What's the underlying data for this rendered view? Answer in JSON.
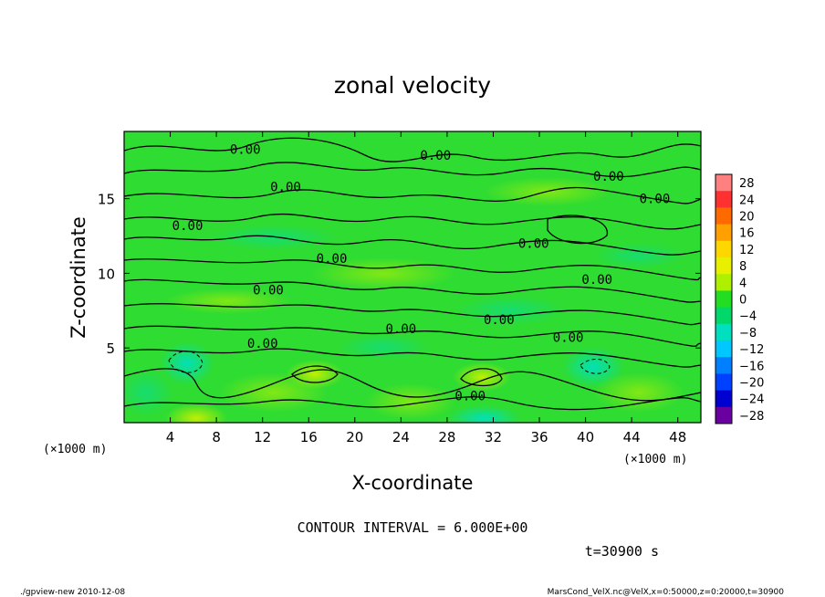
{
  "chart_data": {
    "type": "heatmap",
    "title": "zonal velocity",
    "xlabel": "X-coordinate",
    "ylabel": "Z-coordinate",
    "x_unit": "(×1000 m)",
    "y_unit": "(×1000 m)",
    "xlim": [
      0,
      50
    ],
    "ylim": [
      0,
      19.5
    ],
    "x_ticks": [
      4,
      8,
      12,
      16,
      20,
      24,
      28,
      32,
      36,
      40,
      44,
      48
    ],
    "y_ticks": [
      5,
      10,
      15
    ],
    "colorbar": {
      "levels": [
        28,
        24,
        20,
        16,
        12,
        8,
        4,
        0,
        -4,
        -8,
        -12,
        -16,
        -20,
        -24,
        -28
      ],
      "colors": [
        "#ff8080",
        "#ff3030",
        "#ff6a00",
        "#ffa000",
        "#ffd700",
        "#e8f000",
        "#aef000",
        "#22dd22",
        "#00d86a",
        "#00e0c0",
        "#00c8ff",
        "#0080ff",
        "#0040ff",
        "#0000d0",
        "#6a00a0"
      ]
    },
    "contour_label": "0.00",
    "contour_label_positions": [
      {
        "x": 10.5,
        "z": 18.0
      },
      {
        "x": 27.0,
        "z": 17.6
      },
      {
        "x": 42.0,
        "z": 16.2
      },
      {
        "x": 14.0,
        "z": 15.5
      },
      {
        "x": 46.0,
        "z": 14.7
      },
      {
        "x": 5.5,
        "z": 12.9
      },
      {
        "x": 35.5,
        "z": 11.7
      },
      {
        "x": 18.0,
        "z": 10.7
      },
      {
        "x": 41.0,
        "z": 9.3
      },
      {
        "x": 12.5,
        "z": 8.6
      },
      {
        "x": 32.5,
        "z": 6.6
      },
      {
        "x": 24.0,
        "z": 6.0
      },
      {
        "x": 38.5,
        "z": 5.4
      },
      {
        "x": 12.0,
        "z": 5.0
      },
      {
        "x": 30.0,
        "z": 1.5
      }
    ],
    "contour_interval_text": "CONTOUR INTERVAL = 6.000E+00"
  },
  "time_label": "t=30900 s",
  "footer": {
    "left": "./gpview-new  2010-12-08",
    "right": "MarsCond_VelX.nc@VelX,x=0:50000,z=0:20000,t=30900"
  }
}
